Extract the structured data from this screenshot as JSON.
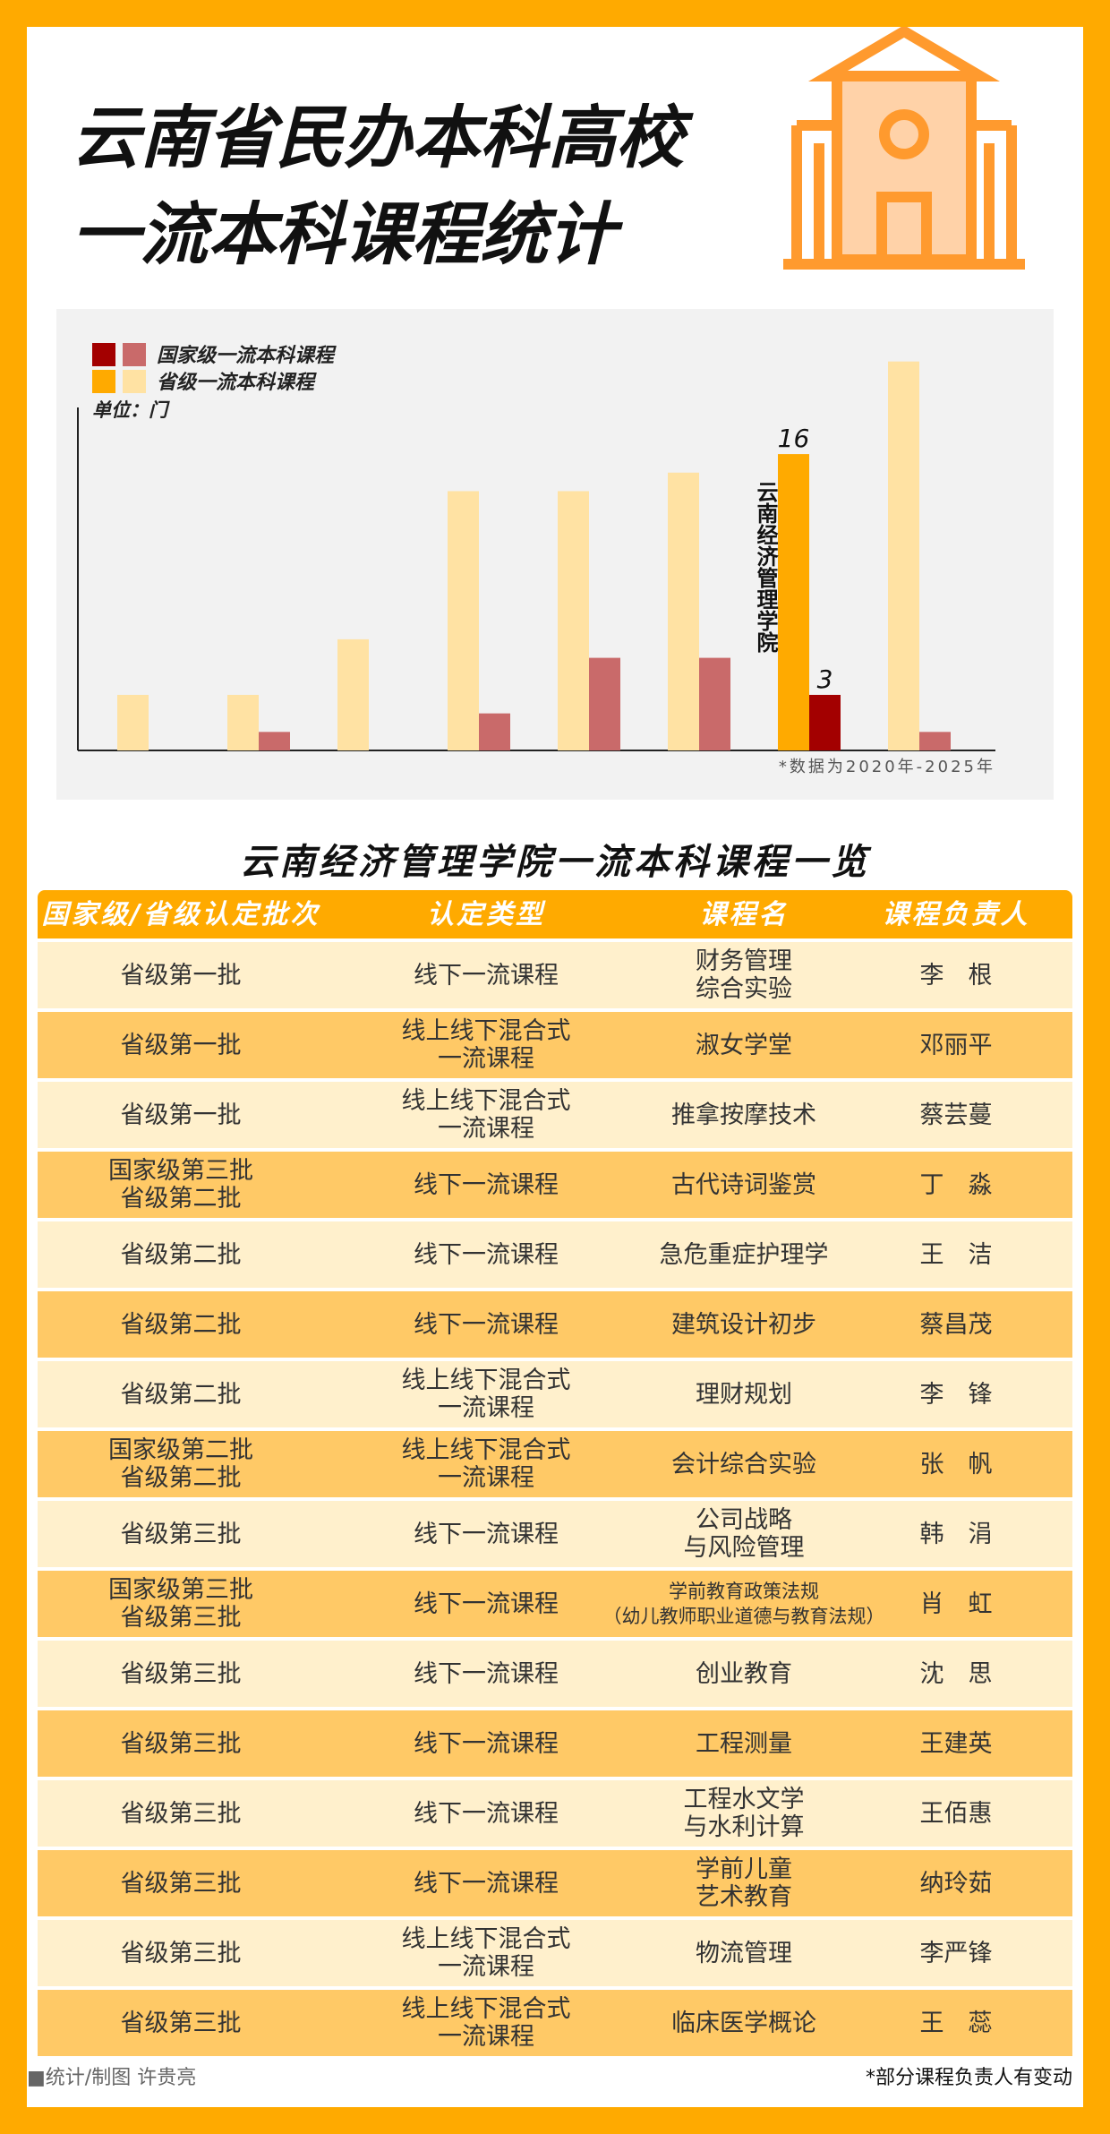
{
  "title_lines": [
    "云南省民办本科高校",
    "一流本科课程统计"
  ],
  "chart_data": {
    "type": "bar",
    "unit_label": "单位：门",
    "note": "*数据为2020年-2025年",
    "categories": [
      null,
      null,
      null,
      null,
      null,
      null,
      "云南经济管理学院",
      null
    ],
    "series": [
      {
        "name": "国家级一流本科课程",
        "color": "#c96a6a",
        "highlight_color": "#a30000",
        "values": [
          0,
          1,
          0,
          2,
          5,
          5,
          3,
          1
        ]
      },
      {
        "name": "省级一流本科课程",
        "color": "#ffe2a3",
        "highlight_color": "#ffaa00",
        "values": [
          3,
          3,
          6,
          14,
          14,
          15,
          16,
          21
        ]
      }
    ],
    "ylim": [
      0,
      22
    ]
  },
  "table": {
    "title": "云南经济管理学院一流本科课程一览",
    "header": [
      "国家级/省级认定批次",
      "认定类型",
      "课程名",
      "课程负责人"
    ],
    "rows": [
      [
        "省级第一批",
        "线下一流课程",
        "财务管理\n综合实验",
        "李　根"
      ],
      [
        "省级第一批",
        "线上线下混合式\n一流课程",
        "淑女学堂",
        "邓丽平"
      ],
      [
        "省级第一批",
        "线上线下混合式\n一流课程",
        "推拿按摩技术",
        "蔡芸蔓"
      ],
      [
        "国家级第三批\n省级第二批",
        "线下一流课程",
        "古代诗词鉴赏",
        "丁　淼"
      ],
      [
        "省级第二批",
        "线下一流课程",
        "急危重症护理学",
        "王　洁"
      ],
      [
        "省级第二批",
        "线下一流课程",
        "建筑设计初步",
        "蔡昌茂"
      ],
      [
        "省级第二批",
        "线上线下混合式\n一流课程",
        "理财规划",
        "李　锋"
      ],
      [
        "国家级第二批\n省级第二批",
        "线上线下混合式\n一流课程",
        "会计综合实验",
        "张　帆"
      ],
      [
        "省级第三批",
        "线下一流课程",
        "公司战略\n与风险管理",
        "韩　涓"
      ],
      [
        "国家级第三批\n省级第三批",
        "线下一流课程",
        "学前教育政策法规\n（幼儿教师职业道德与教育法规）",
        "肖　虹"
      ],
      [
        "省级第三批",
        "线下一流课程",
        "创业教育",
        "沈　思"
      ],
      [
        "省级第三批",
        "线下一流课程",
        "工程测量",
        "王建英"
      ],
      [
        "省级第三批",
        "线下一流课程",
        "工程水文学\n与水利计算",
        "王佰惠"
      ],
      [
        "省级第三批",
        "线下一流课程",
        "学前儿童\n艺术教育",
        "纳玲茹"
      ],
      [
        "省级第三批",
        "线上线下混合式\n一流课程",
        "物流管理",
        "李严锋"
      ],
      [
        "省级第三批",
        "线上线下混合式\n一流课程",
        "临床医学概论",
        "王　蕊"
      ]
    ]
  },
  "footer": {
    "credit": "■统计/制图  许贵亮",
    "note": "*部分课程负责人有变动"
  }
}
